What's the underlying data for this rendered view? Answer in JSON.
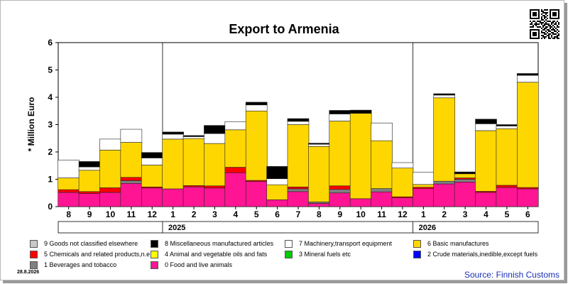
{
  "chart_data": {
    "type": "bar",
    "stacked": true,
    "title": "Export to Armenia",
    "ylabel": "* Million Euro",
    "ylim": [
      0,
      6
    ],
    "yticks": [
      0,
      1,
      2,
      3,
      4,
      5,
      6
    ],
    "grid": "vertical lines at year boundaries",
    "categories": [
      "8",
      "9",
      "10",
      "11",
      "12",
      "1",
      "2",
      "3",
      "4",
      "5",
      "6",
      "7",
      "8",
      "9",
      "10",
      "11",
      "12",
      "1",
      "2",
      "3",
      "4",
      "5",
      "6"
    ],
    "year_groups": [
      {
        "label": "2025",
        "start": 5,
        "end": 16
      },
      {
        "label": "2026",
        "start": 17,
        "end": 22
      }
    ],
    "series": [
      {
        "name": "0 Food and live animals",
        "color": "#ff1493",
        "values": [
          0.52,
          0.48,
          0.52,
          0.85,
          0.68,
          0.65,
          0.72,
          0.68,
          1.24,
          0.92,
          0.25,
          0.55,
          0.12,
          0.5,
          0.29,
          0.54,
          0.32,
          0.66,
          0.83,
          0.9,
          0.52,
          0.7,
          0.65
        ]
      },
      {
        "name": "1 Beverages and tobacco",
        "color": "#808080",
        "values": [
          0.0,
          0.0,
          0.0,
          0.1,
          0.0,
          0.0,
          0.0,
          0.0,
          0.0,
          0.0,
          0.0,
          0.1,
          0.05,
          0.13,
          0.0,
          0.12,
          0.0,
          0.0,
          0.1,
          0.1,
          0.0,
          0.0,
          0.0
        ]
      },
      {
        "name": "2 Crude materials,inedible,except fuels",
        "color": "#0000ff",
        "values": [
          0,
          0,
          0,
          0,
          0,
          0,
          0,
          0,
          0,
          0,
          0,
          0,
          0,
          0,
          0,
          0,
          0,
          0,
          0,
          0,
          0,
          0,
          0
        ]
      },
      {
        "name": "3 Mineral fuels etc",
        "color": "#00cc00",
        "values": [
          0,
          0,
          0,
          0,
          0,
          0,
          0,
          0,
          0,
          0,
          0,
          0,
          0,
          0,
          0,
          0,
          0,
          0,
          0,
          0,
          0,
          0,
          0
        ]
      },
      {
        "name": "4 Animal and vegetable oils and fats",
        "color": "#ffff00",
        "values": [
          0,
          0,
          0,
          0,
          0,
          0,
          0,
          0,
          0,
          0,
          0,
          0,
          0,
          0,
          0,
          0,
          0,
          0,
          0,
          0,
          0,
          0,
          0
        ]
      },
      {
        "name": "5 Chemicals and related products,n.e.s.",
        "color": "#ff0000",
        "values": [
          0.1,
          0.07,
          0.17,
          0.12,
          0.04,
          0.0,
          0.05,
          0.08,
          0.2,
          0.04,
          0.0,
          0.07,
          0.0,
          0.13,
          0.0,
          0.0,
          0.04,
          0.05,
          0.0,
          0.05,
          0.04,
          0.08,
          0.05
        ]
      },
      {
        "name": "6 Basic manufactures",
        "color": "#ffd700",
        "values": [
          0.43,
          0.78,
          1.38,
          1.28,
          0.8,
          1.82,
          1.72,
          1.55,
          1.37,
          2.54,
          0.55,
          2.28,
          2.03,
          2.37,
          3.12,
          1.75,
          1.05,
          0.1,
          3.05,
          0.15,
          2.22,
          2.07,
          3.85
        ]
      },
      {
        "name": "7 Machinery,transport equipment",
        "color": "#ffffff",
        "values": [
          0.65,
          0.12,
          0.4,
          0.48,
          0.26,
          0.18,
          0.07,
          0.36,
          0.3,
          0.22,
          0.22,
          0.12,
          0.08,
          0.26,
          0.0,
          0.65,
          0.2,
          0.45,
          0.1,
          0.0,
          0.25,
          0.1,
          0.25
        ]
      },
      {
        "name": "8 Miscellaneous manufactured articles",
        "color": "#000000",
        "values": [
          0.0,
          0.2,
          0.0,
          0.0,
          0.2,
          0.08,
          0.04,
          0.3,
          0.0,
          0.1,
          0.45,
          0.1,
          0.04,
          0.13,
          0.12,
          0.0,
          0.0,
          0.0,
          0.05,
          0.07,
          0.17,
          0.05,
          0.07
        ]
      },
      {
        "name": "9 Goods not classified elsewhere",
        "color": "#c8c8c8",
        "values": [
          0,
          0,
          0,
          0,
          0,
          0,
          0,
          0,
          0,
          0,
          0,
          0,
          0,
          0,
          0,
          0,
          0,
          0,
          0,
          0,
          0,
          0,
          0
        ]
      }
    ]
  },
  "legend": {
    "order": [
      9,
      8,
      7,
      6,
      5,
      4,
      3,
      2,
      1,
      0
    ],
    "labels": [
      "9 Goods not classified elsewhere",
      "8 Miscellaneous manufactured articles",
      "7 Machinery,transport equipment",
      "6 Basic manufactures",
      "5 Chemicals and related products,n.e.s.",
      "4 Animal and vegetable oils and fats",
      "3 Mineral fuels etc",
      "2 Crude materials,inedible,except fuels",
      "1 Beverages and tobacco",
      "0 Food and live animals"
    ],
    "colors": [
      "#c8c8c8",
      "#000000",
      "#ffffff",
      "#ffd700",
      "#ff0000",
      "#ffff00",
      "#00cc00",
      "#0000ff",
      "#808080",
      "#ff1493"
    ]
  },
  "footer": {
    "date": "28.8.2026",
    "source": "Source: Finnish Customs"
  },
  "qr_icon": "qr-code-icon"
}
